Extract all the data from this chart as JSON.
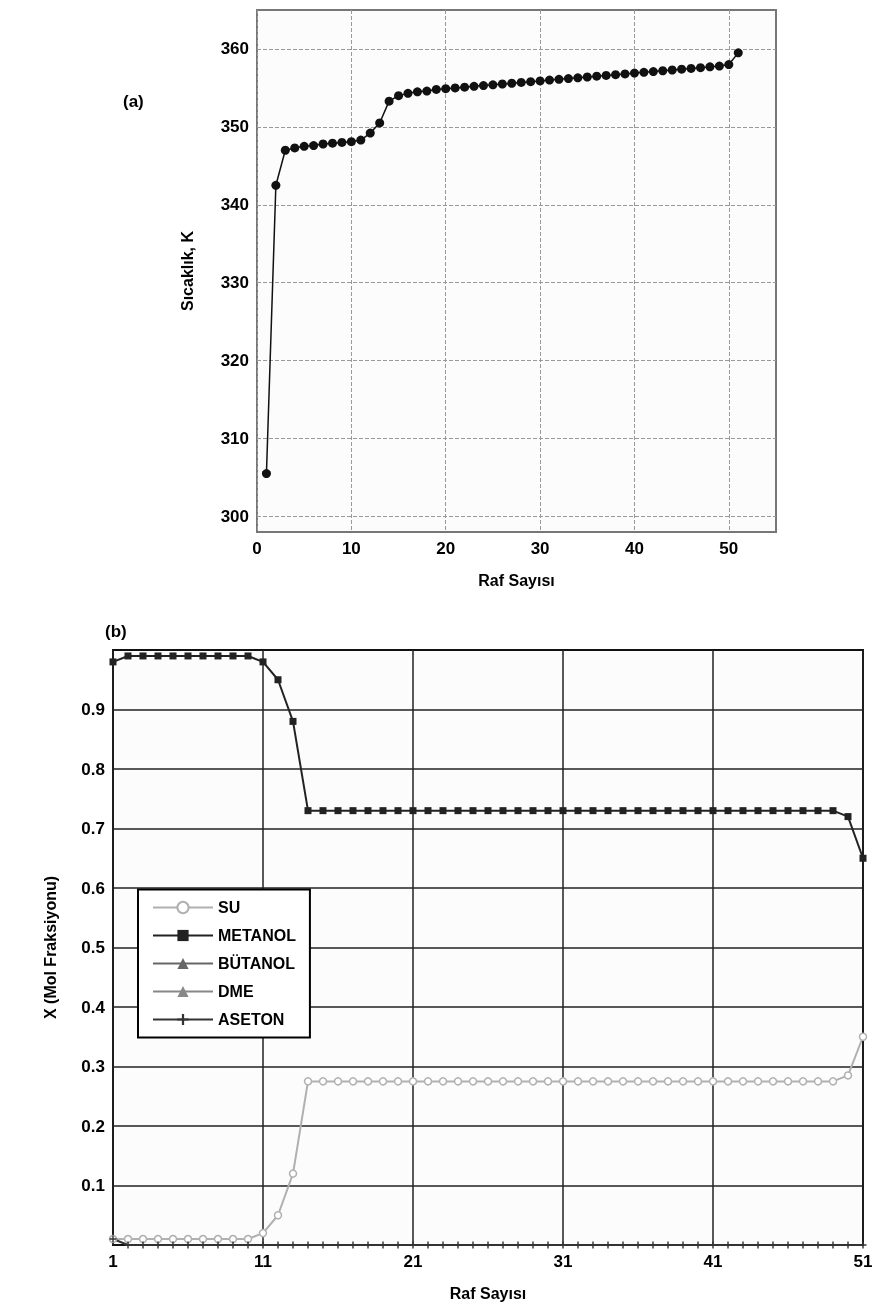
{
  "chart_data": [
    {
      "type": "line",
      "title": "(a)",
      "xlabel": "Raf Sayısı",
      "ylabel": "Sıcaklık, K",
      "xlim": [
        0,
        55
      ],
      "xticks": [
        0,
        10,
        20,
        30,
        40,
        50
      ],
      "ylim": [
        298,
        365
      ],
      "yticks": [
        300,
        310,
        320,
        330,
        340,
        350,
        360
      ],
      "grid": true,
      "legend": false,
      "marker": "circle",
      "x": [
        1,
        2,
        3,
        4,
        5,
        6,
        7,
        8,
        9,
        10,
        11,
        12,
        13,
        14,
        15,
        16,
        17,
        18,
        19,
        20,
        21,
        22,
        23,
        24,
        25,
        26,
        27,
        28,
        29,
        30,
        31,
        32,
        33,
        34,
        35,
        36,
        37,
        38,
        39,
        40,
        41,
        42,
        43,
        44,
        45,
        46,
        47,
        48,
        49,
        50,
        51
      ],
      "series": [
        {
          "color": "#111111",
          "values": [
            305.5,
            342.5,
            347,
            347.3,
            347.5,
            347.6,
            347.8,
            347.9,
            348,
            348.1,
            348.3,
            349.2,
            350.5,
            353.3,
            354,
            354.3,
            354.5,
            354.6,
            354.8,
            354.9,
            355,
            355.1,
            355.2,
            355.3,
            355.4,
            355.5,
            355.6,
            355.7,
            355.8,
            355.9,
            356,
            356.1,
            356.2,
            356.3,
            356.4,
            356.5,
            356.6,
            356.7,
            356.8,
            356.9,
            357,
            357.1,
            357.2,
            357.3,
            357.4,
            357.5,
            357.6,
            357.7,
            357.8,
            358,
            359.5
          ]
        }
      ]
    },
    {
      "type": "line",
      "title": "(b)",
      "xlabel": "Raf Sayısı",
      "ylabel": "X (Mol Fraksiyonu)",
      "xlim": [
        1,
        51
      ],
      "xticks": [
        1,
        11,
        21,
        31,
        41,
        51
      ],
      "ylim": [
        0,
        1
      ],
      "yticks": [
        0.1,
        0.2,
        0.3,
        0.4,
        0.5,
        0.6,
        0.7,
        0.8,
        0.9
      ],
      "grid": true,
      "legend": "left",
      "x": [
        1,
        2,
        3,
        4,
        5,
        6,
        7,
        8,
        9,
        10,
        11,
        12,
        13,
        14,
        15,
        16,
        17,
        18,
        19,
        20,
        21,
        22,
        23,
        24,
        25,
        26,
        27,
        28,
        29,
        30,
        31,
        32,
        33,
        34,
        35,
        36,
        37,
        38,
        39,
        40,
        41,
        42,
        43,
        44,
        45,
        46,
        47,
        48,
        49,
        50,
        51
      ],
      "series": [
        {
          "name": "SU",
          "color": "#b0b0b0",
          "marker": "circle",
          "values": [
            0.01,
            0.01,
            0.01,
            0.01,
            0.01,
            0.01,
            0.01,
            0.01,
            0.01,
            0.01,
            0.02,
            0.05,
            0.12,
            0.275,
            0.275,
            0.275,
            0.275,
            0.275,
            0.275,
            0.275,
            0.275,
            0.275,
            0.275,
            0.275,
            0.275,
            0.275,
            0.275,
            0.275,
            0.275,
            0.275,
            0.275,
            0.275,
            0.275,
            0.275,
            0.275,
            0.275,
            0.275,
            0.275,
            0.275,
            0.275,
            0.275,
            0.275,
            0.275,
            0.275,
            0.275,
            0.275,
            0.275,
            0.275,
            0.275,
            0.285,
            0.35
          ]
        },
        {
          "name": "METANOL",
          "color": "#222222",
          "marker": "square",
          "values": [
            0.98,
            0.99,
            0.99,
            0.99,
            0.99,
            0.99,
            0.99,
            0.99,
            0.99,
            0.99,
            0.98,
            0.95,
            0.88,
            0.73,
            0.73,
            0.73,
            0.73,
            0.73,
            0.73,
            0.73,
            0.73,
            0.73,
            0.73,
            0.73,
            0.73,
            0.73,
            0.73,
            0.73,
            0.73,
            0.73,
            0.73,
            0.73,
            0.73,
            0.73,
            0.73,
            0.73,
            0.73,
            0.73,
            0.73,
            0.73,
            0.73,
            0.73,
            0.73,
            0.73,
            0.73,
            0.73,
            0.73,
            0.73,
            0.73,
            0.72,
            0.65
          ]
        },
        {
          "name": "BÜTANOL",
          "color": "#666666",
          "marker": "triangle",
          "values": [
            null,
            null,
            null,
            null,
            null,
            null,
            null,
            null,
            null,
            null,
            null,
            null,
            null,
            null,
            null,
            null,
            null,
            null,
            null,
            null,
            null,
            null,
            null,
            null,
            null,
            null,
            null,
            null,
            null,
            null,
            null,
            null,
            null,
            null,
            null,
            null,
            null,
            null,
            null,
            null,
            null,
            null,
            null,
            null,
            null,
            null,
            null,
            null,
            null,
            null,
            null
          ]
        },
        {
          "name": "DME",
          "color": "#888888",
          "marker": "triangle",
          "values": [
            null,
            null,
            null,
            null,
            null,
            null,
            null,
            null,
            null,
            null,
            null,
            null,
            null,
            null,
            null,
            null,
            null,
            null,
            null,
            null,
            null,
            null,
            null,
            null,
            null,
            null,
            null,
            null,
            null,
            null,
            null,
            null,
            null,
            null,
            null,
            null,
            null,
            null,
            null,
            null,
            null,
            null,
            null,
            null,
            null,
            null,
            null,
            null,
            null,
            null,
            null
          ]
        },
        {
          "name": "ASETON",
          "color": "#333333",
          "marker": "cross",
          "values": [
            0.01,
            0,
            0,
            0,
            0,
            0,
            0,
            0,
            0,
            0,
            0,
            0,
            0,
            0,
            0,
            0,
            0,
            0,
            0,
            0,
            0,
            0,
            0,
            0,
            0,
            0,
            0,
            0,
            0,
            0,
            0,
            0,
            0,
            0,
            0,
            0,
            0,
            0,
            0,
            0,
            0,
            0,
            0,
            0,
            0,
            0,
            0,
            0,
            0,
            0,
            0
          ]
        }
      ]
    }
  ]
}
